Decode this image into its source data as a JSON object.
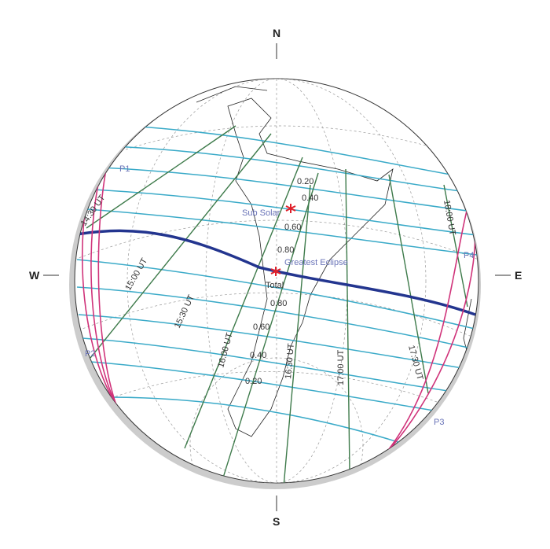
{
  "compass": {
    "north": "N",
    "south": "S",
    "east": "E",
    "west": "W"
  },
  "contacts": [
    "P1",
    "P2",
    "P3",
    "P4"
  ],
  "time_labels": [
    "14:30 UT",
    "15:00 UT",
    "15:30 UT",
    "16:00 UT",
    "16:30 UT",
    "17:00 UT",
    "17:30 UT",
    "18:00 UT"
  ],
  "magnitude_north": [
    "0.20",
    "0.40",
    "0.60",
    "0.80"
  ],
  "magnitude_south": [
    "0.80",
    "0.60",
    "0.40",
    "0.20"
  ],
  "markers": {
    "sub_solar": "Sub Solar",
    "greatest_eclipse": "Greatest Eclipse",
    "total": "Total"
  },
  "colors": {
    "magnitude_lines": "#3aaac8",
    "time_lines": "#3d7a4a",
    "central_path": "#23358f",
    "contact_limits": "#d0337a",
    "marker": "#e0202a"
  }
}
